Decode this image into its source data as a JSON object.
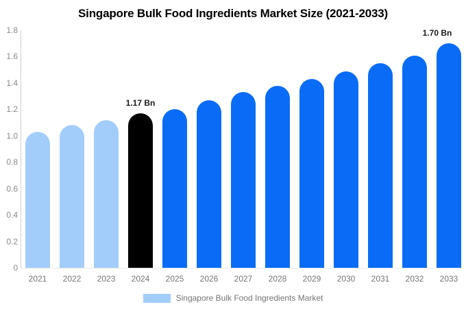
{
  "title": "Singapore Bulk Food Ingredients Market Size (2021-2033)",
  "chart_data": {
    "type": "bar",
    "categories": [
      "2021",
      "2022",
      "2023",
      "2024",
      "2025",
      "2026",
      "2027",
      "2028",
      "2029",
      "2030",
      "2031",
      "2032",
      "2033"
    ],
    "values": [
      1.03,
      1.08,
      1.12,
      1.17,
      1.2,
      1.27,
      1.33,
      1.38,
      1.43,
      1.49,
      1.55,
      1.61,
      1.7
    ],
    "unit": "Bn",
    "color_roles": [
      "past",
      "past",
      "past",
      "highlight",
      "forecast",
      "forecast",
      "forecast",
      "forecast",
      "forecast",
      "forecast",
      "forecast",
      "forecast",
      "forecast"
    ],
    "colors": {
      "past": "#a2cdfb",
      "highlight": "#000000",
      "forecast": "#0a6cf6"
    },
    "y_ticks": [
      "1.8",
      "1.6",
      "1.4",
      "1.2",
      "1.0",
      "0.8",
      "0.6",
      "0.4",
      "0.2",
      "0"
    ],
    "ylim": [
      0,
      1.8
    ],
    "grid": "off",
    "annotations": [
      {
        "category": "2024",
        "text": "1.17 Bn"
      },
      {
        "category": "2033",
        "text": "1.70 Bn"
      }
    ],
    "legend": {
      "position": "bottom",
      "items": [
        {
          "label": "Singapore Bulk Food Ingredients Market",
          "color": "#a2cdfb"
        }
      ]
    },
    "text_color": "#757575"
  }
}
